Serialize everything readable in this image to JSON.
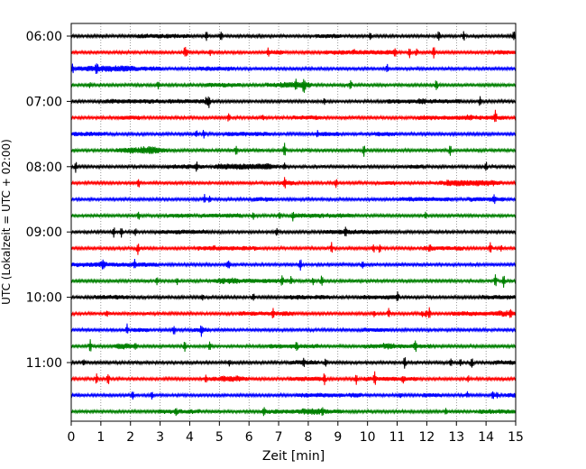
{
  "chart_data": {
    "type": "line",
    "xlabel": "Zeit  [min]",
    "ylabel": "UTC (Lokalzeit = UTC + 02:00)",
    "xlim": [
      0,
      15
    ],
    "x_ticks": [
      "0",
      "1",
      "2",
      "3",
      "4",
      "5",
      "6",
      "7",
      "8",
      "9",
      "10",
      "11",
      "12",
      "13",
      "14",
      "15"
    ],
    "y_ticks": [
      "06:00",
      "07:00",
      "08:00",
      "09:00",
      "10:00",
      "11:00"
    ],
    "grid": "vertical dotted at each minute",
    "trace_interval_min": 15,
    "trace_colors": [
      "#000000",
      "#ff0000",
      "#0000ff",
      "#008000"
    ],
    "traces": [
      {
        "start": "06:00",
        "color": "#000000"
      },
      {
        "start": "06:15",
        "color": "#ff0000"
      },
      {
        "start": "06:30",
        "color": "#0000ff"
      },
      {
        "start": "06:45",
        "color": "#008000"
      },
      {
        "start": "07:00",
        "color": "#000000"
      },
      {
        "start": "07:15",
        "color": "#ff0000"
      },
      {
        "start": "07:30",
        "color": "#0000ff"
      },
      {
        "start": "07:45",
        "color": "#008000"
      },
      {
        "start": "08:00",
        "color": "#000000"
      },
      {
        "start": "08:15",
        "color": "#ff0000"
      },
      {
        "start": "08:30",
        "color": "#0000ff"
      },
      {
        "start": "08:45",
        "color": "#008000"
      },
      {
        "start": "09:00",
        "color": "#000000"
      },
      {
        "start": "09:15",
        "color": "#ff0000"
      },
      {
        "start": "09:30",
        "color": "#0000ff"
      },
      {
        "start": "09:45",
        "color": "#008000"
      },
      {
        "start": "10:00",
        "color": "#000000"
      },
      {
        "start": "10:15",
        "color": "#ff0000"
      },
      {
        "start": "10:30",
        "color": "#0000ff"
      },
      {
        "start": "10:45",
        "color": "#008000"
      },
      {
        "start": "11:00",
        "color": "#000000"
      },
      {
        "start": "11:15",
        "color": "#ff0000"
      },
      {
        "start": "11:30",
        "color": "#0000ff"
      },
      {
        "start": "11:45",
        "color": "#008000"
      }
    ]
  }
}
